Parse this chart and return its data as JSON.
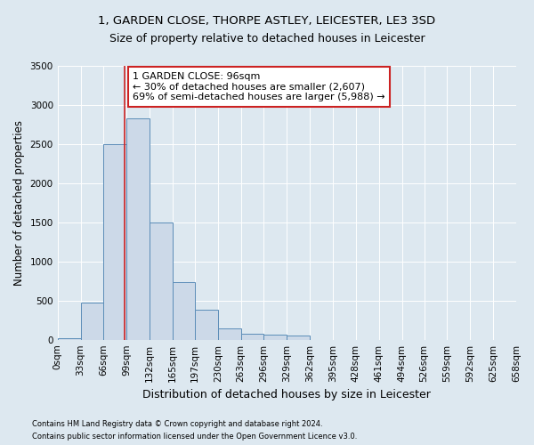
{
  "title1": "1, GARDEN CLOSE, THORPE ASTLEY, LEICESTER, LE3 3SD",
  "title2": "Size of property relative to detached houses in Leicester",
  "xlabel": "Distribution of detached houses by size in Leicester",
  "ylabel": "Number of detached properties",
  "footnote1": "Contains HM Land Registry data © Crown copyright and database right 2024.",
  "footnote2": "Contains public sector information licensed under the Open Government Licence v3.0.",
  "bin_edges": [
    0,
    33,
    66,
    99,
    132,
    165,
    197,
    230,
    263,
    296,
    329,
    362,
    395,
    428,
    461,
    494,
    526,
    559,
    592,
    625,
    658
  ],
  "bar_heights": [
    20,
    475,
    2500,
    2825,
    1500,
    735,
    385,
    140,
    80,
    70,
    50,
    0,
    0,
    0,
    0,
    0,
    0,
    0,
    0,
    0
  ],
  "bar_color": "#ccd9e8",
  "bar_edge_color": "#5b8db8",
  "vline_x": 96,
  "vline_color": "#cc2222",
  "annotation_text": "1 GARDEN CLOSE: 96sqm\n← 30% of detached houses are smaller (2,607)\n69% of semi-detached houses are larger (5,988) →",
  "annotation_box_color": "#ffffff",
  "annotation_box_edge": "#cc2222",
  "ylim": [
    0,
    3500
  ],
  "yticks": [
    0,
    500,
    1000,
    1500,
    2000,
    2500,
    3000,
    3500
  ],
  "grid_color": "#ffffff",
  "background_color": "#dde8f0",
  "title1_fontsize": 9.5,
  "title2_fontsize": 9,
  "ylabel_fontsize": 8.5,
  "xlabel_fontsize": 9,
  "annotation_fontsize": 8,
  "tick_fontsize": 7.5,
  "footnote_fontsize": 6
}
